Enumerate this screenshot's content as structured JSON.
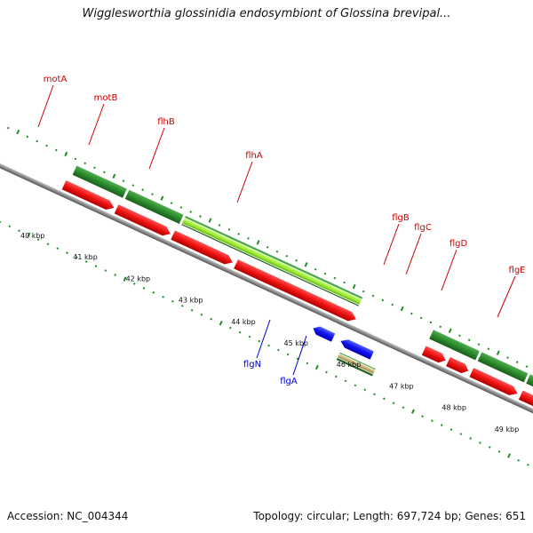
{
  "title": "Wigglesworthia glossinidia endosymbiont of Glossina brevipal...",
  "footer": {
    "accession": "Accession: NC_004344",
    "summary": "Topology: circular; Length: 697,724 bp; Genes: 651"
  },
  "colors": {
    "backbone": "#8a8a8a",
    "forward_gene": "#ee1111",
    "forward_cds": "#228b22",
    "highlight": "#9aee33",
    "reverse_gene": "#1111ee",
    "reverse_cds": "#c8b070",
    "tick": "#228b22",
    "label_forward": "#cc0000",
    "label_reverse": "#0000cc"
  },
  "genes": [
    {
      "name": "motA",
      "strand": "forward"
    },
    {
      "name": "motB",
      "strand": "forward"
    },
    {
      "name": "flhB",
      "strand": "forward"
    },
    {
      "name": "flhA",
      "strand": "forward"
    },
    {
      "name": "flgB",
      "strand": "forward"
    },
    {
      "name": "flgC",
      "strand": "forward"
    },
    {
      "name": "flgD",
      "strand": "forward"
    },
    {
      "name": "flgE",
      "strand": "forward"
    },
    {
      "name": "flgN",
      "strand": "reverse"
    },
    {
      "name": "flgA",
      "strand": "reverse"
    }
  ],
  "kbp_labels": [
    "40 kbp",
    "41 kbp",
    "42 kbp",
    "43 kbp",
    "44 kbp",
    "45 kbp",
    "46 kbp",
    "47 kbp",
    "48 kbp",
    "49 kbp"
  ]
}
